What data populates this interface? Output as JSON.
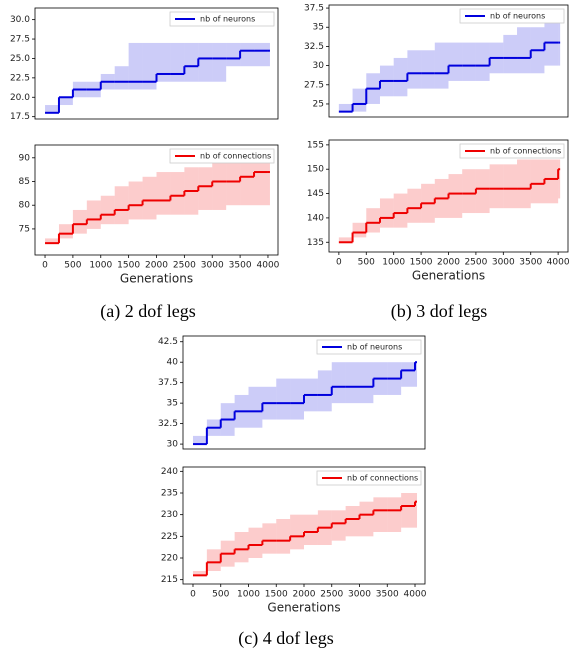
{
  "chart_data": [
    {
      "type": "line",
      "x": [
        0,
        250,
        500,
        750,
        1000,
        1250,
        1500,
        1750,
        2000,
        2250,
        2500,
        2750,
        3000,
        3250,
        3500,
        3750,
        4000
      ],
      "series": [
        {
          "name": "nb of neurons",
          "color": "#0000dd",
          "values": [
            18,
            20,
            21,
            21,
            22,
            22,
            22,
            22,
            23,
            23,
            24,
            25,
            25,
            25,
            26,
            26,
            26
          ],
          "lower": [
            18,
            19,
            20,
            20,
            21,
            21,
            21,
            21,
            22,
            22,
            22,
            22,
            22,
            24,
            24,
            24,
            24
          ],
          "upper": [
            19,
            20,
            22,
            22,
            23,
            24,
            27,
            27,
            27,
            27,
            27,
            27,
            27,
            27,
            27,
            27,
            27
          ]
        }
      ],
      "xlim": [
        -180,
        4180
      ],
      "ylim": [
        17.2,
        31.5
      ],
      "yticks": [
        17.5,
        20.0,
        22.5,
        25.0,
        27.5,
        30.0
      ],
      "legend": "upper right"
    },
    {
      "type": "line",
      "x": [
        0,
        250,
        500,
        750,
        1000,
        1250,
        1500,
        1750,
        2000,
        2250,
        2500,
        2750,
        3000,
        3250,
        3500,
        3750,
        4000
      ],
      "series": [
        {
          "name": "nb of connections",
          "color": "#ee0000",
          "values": [
            72,
            74,
            76,
            77,
            78,
            79,
            80,
            81,
            81,
            82,
            83,
            84,
            85,
            85,
            86,
            87,
            87
          ],
          "lower": [
            72,
            73,
            74,
            75,
            76,
            76,
            77,
            77,
            78,
            78,
            78,
            79,
            79,
            80,
            80,
            80,
            80
          ],
          "upper": [
            73,
            76,
            79,
            81,
            82,
            84,
            85,
            86,
            87,
            87,
            88,
            88,
            89,
            89,
            89,
            89,
            89
          ]
        }
      ],
      "xlim": [
        -180,
        4180
      ],
      "ylim": [
        69.5,
        92.7
      ],
      "yticks": [
        75,
        80,
        85,
        90
      ],
      "xticks": [
        0,
        500,
        1000,
        1500,
        2000,
        2500,
        3000,
        3500,
        4000
      ],
      "xlabel": "Generations",
      "legend": "upper right"
    },
    {
      "type": "line",
      "x": [
        0,
        250,
        500,
        750,
        1000,
        1250,
        1500,
        1750,
        2000,
        2250,
        2500,
        2750,
        3000,
        3250,
        3500,
        3750,
        4000
      ],
      "series": [
        {
          "name": "nb of neurons",
          "color": "#0000dd",
          "values": [
            24,
            25,
            27,
            28,
            28,
            29,
            29,
            29,
            30,
            30,
            30,
            31,
            31,
            31,
            32,
            33,
            33
          ],
          "lower": [
            24,
            24,
            25,
            26,
            26,
            27,
            27,
            27,
            28,
            28,
            28,
            29,
            29,
            29,
            29,
            30,
            30
          ],
          "upper": [
            25,
            27,
            29,
            30,
            31,
            32,
            32,
            33,
            33,
            33,
            33,
            33,
            34,
            35,
            35,
            36,
            36
          ]
        }
      ],
      "xlim": [
        -180,
        4180
      ],
      "ylim": [
        23.3,
        37.9
      ],
      "yticks": [
        25.0,
        27.5,
        30.0,
        32.5,
        35.0,
        37.5
      ],
      "legend": "upper right"
    },
    {
      "type": "line",
      "x": [
        0,
        250,
        500,
        750,
        1000,
        1250,
        1500,
        1750,
        2000,
        2250,
        2500,
        2750,
        3000,
        3250,
        3500,
        3750,
        4000
      ],
      "series": [
        {
          "name": "nb of connections",
          "color": "#ee0000",
          "values": [
            135,
            137,
            139,
            140,
            141,
            142,
            143,
            144,
            145,
            145,
            146,
            146,
            146,
            146,
            147,
            148,
            150
          ],
          "lower": [
            135,
            136,
            137,
            138,
            138,
            139,
            139,
            140,
            140,
            141,
            141,
            142,
            142,
            142,
            143,
            143,
            144
          ],
          "upper": [
            136,
            139,
            142,
            144,
            145,
            146,
            147,
            148,
            149,
            150,
            150,
            151,
            151,
            152,
            152,
            152,
            152
          ]
        }
      ],
      "xlim": [
        -180,
        4180
      ],
      "ylim": [
        133,
        156
      ],
      "yticks": [
        135,
        140,
        145,
        150,
        155
      ],
      "xticks": [
        0,
        500,
        1000,
        1500,
        2000,
        2500,
        3000,
        3500,
        4000
      ],
      "xlabel": "Generations",
      "legend": "upper right"
    },
    {
      "type": "line",
      "x": [
        0,
        250,
        500,
        750,
        1000,
        1250,
        1500,
        1750,
        2000,
        2250,
        2500,
        2750,
        3000,
        3250,
        3500,
        3750,
        4000
      ],
      "series": [
        {
          "name": "nb of neurons",
          "color": "#0000dd",
          "values": [
            30,
            32,
            33,
            34,
            34,
            35,
            35,
            35,
            36,
            36,
            37,
            37,
            37,
            38,
            38,
            39,
            40
          ],
          "lower": [
            30,
            31,
            31,
            32,
            32,
            33,
            33,
            33,
            34,
            34,
            35,
            35,
            35,
            36,
            36,
            37,
            37
          ],
          "upper": [
            31,
            33,
            35,
            36,
            37,
            37,
            38,
            38,
            38,
            39,
            40,
            40,
            40,
            40,
            40,
            40,
            40
          ]
        }
      ],
      "xlim": [
        -180,
        4180
      ],
      "ylim": [
        29.4,
        43.2
      ],
      "yticks": [
        30.0,
        32.5,
        35.0,
        37.5,
        40.0,
        42.5
      ],
      "legend": "upper right"
    },
    {
      "type": "line",
      "x": [
        0,
        250,
        500,
        750,
        1000,
        1250,
        1500,
        1750,
        2000,
        2250,
        2500,
        2750,
        3000,
        3250,
        3500,
        3750,
        4000
      ],
      "series": [
        {
          "name": "nb of connections",
          "color": "#ee0000",
          "values": [
            216,
            219,
            221,
            222,
            223,
            224,
            224,
            225,
            226,
            227,
            228,
            229,
            230,
            231,
            231,
            232,
            233
          ],
          "lower": [
            216,
            217,
            218,
            219,
            220,
            221,
            221,
            222,
            223,
            223,
            224,
            225,
            225,
            226,
            226,
            227,
            227
          ],
          "upper": [
            217,
            222,
            224,
            226,
            227,
            228,
            229,
            230,
            230,
            231,
            231,
            232,
            233,
            234,
            234,
            235,
            235
          ]
        }
      ],
      "xlim": [
        -180,
        4180
      ],
      "ylim": [
        214,
        241
      ],
      "yticks": [
        215,
        220,
        225,
        230,
        235,
        240
      ],
      "xticks": [
        0,
        500,
        1000,
        1500,
        2000,
        2500,
        3000,
        3500,
        4000
      ],
      "xlabel": "Generations",
      "legend": "upper right"
    }
  ],
  "captions": [
    "(a) 2 dof legs",
    "(b) 3 dof legs",
    "(c) 4 dof legs"
  ]
}
